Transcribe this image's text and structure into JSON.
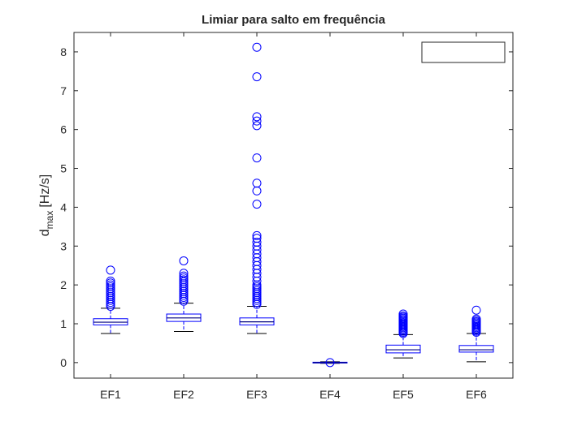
{
  "chart_data": {
    "type": "boxplot",
    "title": "Limiar para salto em frequência",
    "ylabel_main": "d",
    "ylabel_sub": "max",
    "ylabel_unit": "[Hz/s]",
    "xlabel": "",
    "categories": [
      "EF1",
      "EF2",
      "EF3",
      "EF4",
      "EF5",
      "EF6"
    ],
    "ylim": [
      -0.4,
      8.5
    ],
    "yticks": [
      0,
      1,
      2,
      3,
      4,
      5,
      6,
      7,
      8
    ],
    "grid": false,
    "legend": {
      "entries": [],
      "placement": "top-right"
    },
    "box_color": "#0000ff",
    "median_color": "#000080",
    "outlier_color": "#0000ff",
    "boxes": [
      {
        "category": "EF1",
        "whisker_low": 0.75,
        "q1": 0.97,
        "median": 1.04,
        "q3": 1.13,
        "whisker_high": 1.4,
        "outliers": [
          1.45,
          1.5,
          1.55,
          1.6,
          1.65,
          1.7,
          1.75,
          1.8,
          1.85,
          1.9,
          1.95,
          2.0,
          2.05,
          2.1,
          2.38
        ]
      },
      {
        "category": "EF2",
        "whisker_low": 0.8,
        "q1": 1.06,
        "median": 1.15,
        "q3": 1.25,
        "whisker_high": 1.53,
        "outliers": [
          1.58,
          1.63,
          1.68,
          1.73,
          1.78,
          1.83,
          1.88,
          1.93,
          1.98,
          2.03,
          2.08,
          2.13,
          2.18,
          2.23,
          2.3,
          2.62
        ]
      },
      {
        "category": "EF3",
        "whisker_low": 0.75,
        "q1": 0.97,
        "median": 1.05,
        "q3": 1.15,
        "whisker_high": 1.45,
        "outliers": [
          1.5,
          1.55,
          1.6,
          1.65,
          1.7,
          1.75,
          1.8,
          1.85,
          1.9,
          1.95,
          2.0,
          2.1,
          2.2,
          2.3,
          2.4,
          2.5,
          2.6,
          2.7,
          2.8,
          2.9,
          3.0,
          3.1,
          3.2,
          3.27,
          4.08,
          4.42,
          4.62,
          5.27,
          6.1,
          6.22,
          6.33,
          7.36,
          8.12
        ]
      },
      {
        "category": "EF4",
        "whisker_low": -0.02,
        "q1": -0.01,
        "median": 0.0,
        "q3": 0.01,
        "whisker_high": 0.02,
        "outliers": [
          0.0
        ]
      },
      {
        "category": "EF5",
        "whisker_low": 0.12,
        "q1": 0.25,
        "median": 0.33,
        "q3": 0.45,
        "whisker_high": 0.72,
        "outliers": [
          0.75,
          0.78,
          0.81,
          0.84,
          0.87,
          0.9,
          0.93,
          0.96,
          0.99,
          1.02,
          1.05,
          1.08,
          1.11,
          1.14,
          1.17,
          1.2,
          1.25
        ]
      },
      {
        "category": "EF6",
        "whisker_low": 0.02,
        "q1": 0.27,
        "median": 0.33,
        "q3": 0.44,
        "whisker_high": 0.75,
        "outliers": [
          0.78,
          0.81,
          0.84,
          0.87,
          0.9,
          0.93,
          0.96,
          0.99,
          1.02,
          1.05,
          1.08,
          1.12,
          1.35
        ]
      }
    ]
  }
}
